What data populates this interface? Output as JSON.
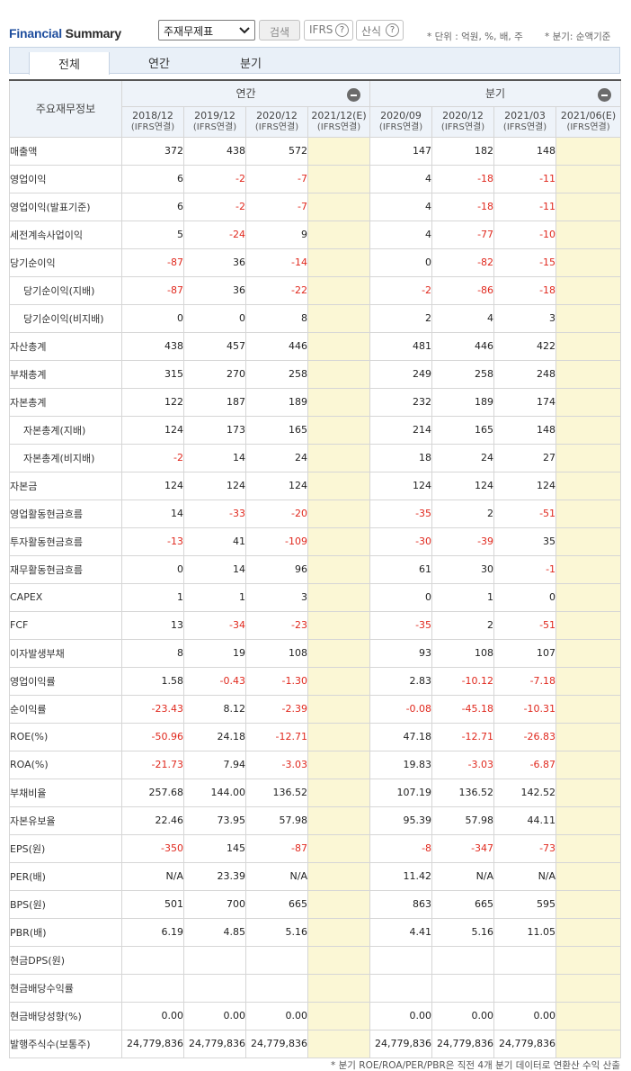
{
  "brand": {
    "part1": "Financial",
    "part2": "Summary"
  },
  "controls": {
    "select_value": "주재무제표",
    "search_label": "검색",
    "ifrs_label": "IFRS",
    "formula_label": "산식",
    "help_glyph": "?",
    "unit_note": "* 단위 : 억원, %, 배, 주",
    "basis_note": "* 분기: 순액기준"
  },
  "tabs": [
    {
      "label": "전체",
      "active": true
    },
    {
      "label": "연간",
      "active": false
    },
    {
      "label": "분기",
      "active": false
    }
  ],
  "table": {
    "corner_label": "주요재무정보",
    "annual_label": "연간",
    "quarter_label": "분기",
    "periods": [
      {
        "label": "2018/12",
        "sub": "(IFRS연결)",
        "estimate": false
      },
      {
        "label": "2019/12",
        "sub": "(IFRS연결)",
        "estimate": false
      },
      {
        "label": "2020/12",
        "sub": "(IFRS연결)",
        "estimate": false
      },
      {
        "label": "2021/12(E)",
        "sub": "(IFRS연결)",
        "estimate": true
      },
      {
        "label": "2020/09",
        "sub": "(IFRS연결)",
        "estimate": false
      },
      {
        "label": "2020/12",
        "sub": "(IFRS연결)",
        "estimate": false
      },
      {
        "label": "2021/03",
        "sub": "(IFRS연결)",
        "estimate": false
      },
      {
        "label": "2021/06(E)",
        "sub": "(IFRS연결)",
        "estimate": true
      }
    ],
    "rows": [
      {
        "label": "매출액",
        "sub": false,
        "values": [
          "372",
          "438",
          "572",
          "",
          "147",
          "182",
          "148",
          ""
        ]
      },
      {
        "label": "영업이익",
        "sub": false,
        "values": [
          "6",
          "-2",
          "-7",
          "",
          "4",
          "-18",
          "-11",
          ""
        ]
      },
      {
        "label": "영업이익(발표기준)",
        "sub": false,
        "values": [
          "6",
          "-2",
          "-7",
          "",
          "4",
          "-18",
          "-11",
          ""
        ]
      },
      {
        "label": "세전계속사업이익",
        "sub": false,
        "values": [
          "5",
          "-24",
          "9",
          "",
          "4",
          "-77",
          "-10",
          ""
        ]
      },
      {
        "label": "당기순이익",
        "sub": false,
        "values": [
          "-87",
          "36",
          "-14",
          "",
          "0",
          "-82",
          "-15",
          ""
        ]
      },
      {
        "label": "당기순이익(지배)",
        "sub": true,
        "values": [
          "-87",
          "36",
          "-22",
          "",
          "-2",
          "-86",
          "-18",
          ""
        ]
      },
      {
        "label": "당기순이익(비지배)",
        "sub": true,
        "values": [
          "0",
          "0",
          "8",
          "",
          "2",
          "4",
          "3",
          ""
        ]
      },
      {
        "label": "자산총계",
        "sub": false,
        "values": [
          "438",
          "457",
          "446",
          "",
          "481",
          "446",
          "422",
          ""
        ]
      },
      {
        "label": "부채총계",
        "sub": false,
        "values": [
          "315",
          "270",
          "258",
          "",
          "249",
          "258",
          "248",
          ""
        ]
      },
      {
        "label": "자본총계",
        "sub": false,
        "values": [
          "122",
          "187",
          "189",
          "",
          "232",
          "189",
          "174",
          ""
        ]
      },
      {
        "label": "자본총계(지배)",
        "sub": true,
        "values": [
          "124",
          "173",
          "165",
          "",
          "214",
          "165",
          "148",
          ""
        ]
      },
      {
        "label": "자본총계(비지배)",
        "sub": true,
        "values": [
          "-2",
          "14",
          "24",
          "",
          "18",
          "24",
          "27",
          ""
        ]
      },
      {
        "label": "자본금",
        "sub": false,
        "values": [
          "124",
          "124",
          "124",
          "",
          "124",
          "124",
          "124",
          ""
        ]
      },
      {
        "label": "영업활동현금흐름",
        "sub": false,
        "values": [
          "14",
          "-33",
          "-20",
          "",
          "-35",
          "2",
          "-51",
          ""
        ]
      },
      {
        "label": "투자활동현금흐름",
        "sub": false,
        "values": [
          "-13",
          "41",
          "-109",
          "",
          "-30",
          "-39",
          "35",
          ""
        ]
      },
      {
        "label": "재무활동현금흐름",
        "sub": false,
        "values": [
          "0",
          "14",
          "96",
          "",
          "61",
          "30",
          "-1",
          ""
        ]
      },
      {
        "label": "CAPEX",
        "sub": false,
        "values": [
          "1",
          "1",
          "3",
          "",
          "0",
          "1",
          "0",
          ""
        ]
      },
      {
        "label": "FCF",
        "sub": false,
        "values": [
          "13",
          "-34",
          "-23",
          "",
          "-35",
          "2",
          "-51",
          ""
        ]
      },
      {
        "label": "이자발생부채",
        "sub": false,
        "values": [
          "8",
          "19",
          "108",
          "",
          "93",
          "108",
          "107",
          ""
        ]
      },
      {
        "label": "영업이익률",
        "sub": false,
        "values": [
          "1.58",
          "-0.43",
          "-1.30",
          "",
          "2.83",
          "-10.12",
          "-7.18",
          ""
        ]
      },
      {
        "label": "순이익률",
        "sub": false,
        "values": [
          "-23.43",
          "8.12",
          "-2.39",
          "",
          "-0.08",
          "-45.18",
          "-10.31",
          ""
        ]
      },
      {
        "label": "ROE(%)",
        "sub": false,
        "values": [
          "-50.96",
          "24.18",
          "-12.71",
          "",
          "47.18",
          "-12.71",
          "-26.83",
          ""
        ]
      },
      {
        "label": "ROA(%)",
        "sub": false,
        "values": [
          "-21.73",
          "7.94",
          "-3.03",
          "",
          "19.83",
          "-3.03",
          "-6.87",
          ""
        ]
      },
      {
        "label": "부채비율",
        "sub": false,
        "values": [
          "257.68",
          "144.00",
          "136.52",
          "",
          "107.19",
          "136.52",
          "142.52",
          ""
        ]
      },
      {
        "label": "자본유보율",
        "sub": false,
        "values": [
          "22.46",
          "73.95",
          "57.98",
          "",
          "95.39",
          "57.98",
          "44.11",
          ""
        ]
      },
      {
        "label": "EPS(원)",
        "sub": false,
        "values": [
          "-350",
          "145",
          "-87",
          "",
          "-8",
          "-347",
          "-73",
          ""
        ]
      },
      {
        "label": "PER(배)",
        "sub": false,
        "values": [
          "N/A",
          "23.39",
          "N/A",
          "",
          "11.42",
          "N/A",
          "N/A",
          ""
        ]
      },
      {
        "label": "BPS(원)",
        "sub": false,
        "values": [
          "501",
          "700",
          "665",
          "",
          "863",
          "665",
          "595",
          ""
        ]
      },
      {
        "label": "PBR(배)",
        "sub": false,
        "values": [
          "6.19",
          "4.85",
          "5.16",
          "",
          "4.41",
          "5.16",
          "11.05",
          ""
        ]
      },
      {
        "label": "현금DPS(원)",
        "sub": false,
        "values": [
          "",
          "",
          "",
          "",
          "",
          "",
          "",
          ""
        ]
      },
      {
        "label": "현금배당수익률",
        "sub": false,
        "values": [
          "",
          "",
          "",
          "",
          "",
          "",
          "",
          ""
        ]
      },
      {
        "label": "현금배당성향(%)",
        "sub": false,
        "values": [
          "0.00",
          "0.00",
          "0.00",
          "",
          "0.00",
          "0.00",
          "0.00",
          ""
        ]
      },
      {
        "label": "발행주식수(보통주)",
        "sub": false,
        "values": [
          "24,779,836",
          "24,779,836",
          "24,779,836",
          "",
          "24,779,836",
          "24,779,836",
          "24,779,836",
          ""
        ]
      }
    ]
  },
  "footnote": "* 분기 ROE/ROA/PER/PBR은 직전 4개 분기 데이터로 연환산 수익 산출",
  "colors": {
    "negative": "#e0281d",
    "estimate_bg": "#fbf7d5",
    "header_bg": "#eef3f9",
    "brand_blue": "#1f4e9e"
  }
}
